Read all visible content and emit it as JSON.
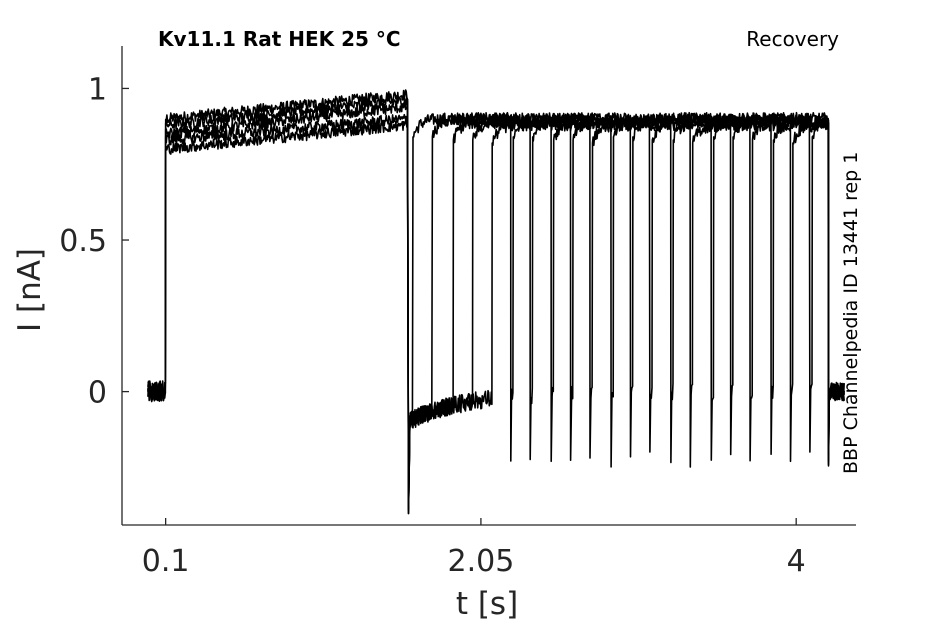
{
  "chart_data": {
    "type": "line",
    "title": "Kv11.1  Rat  HEK  25 °C",
    "protocol": "Recovery",
    "source_note": "BBP Channelpedia ID 13441 rep 1",
    "xlabel": "t [s]",
    "ylabel": "I [nA]",
    "xlim": [
      -0.17,
      4.37
    ],
    "ylim": [
      -0.44,
      1.14
    ],
    "xticks": [
      0.1,
      2.05,
      4
    ],
    "xtick_labels": [
      "0.1",
      "2.05",
      "4"
    ],
    "yticks": [
      0,
      0.5,
      1
    ],
    "ytick_labels": [
      "0",
      "0.5",
      "1"
    ],
    "grid": false,
    "line_color": "#000000",
    "activation_step": {
      "start": 0.1,
      "end": 1.6
    },
    "test_pulse_times": [
      1.63,
      1.75,
      1.88,
      2.0,
      2.12,
      2.25,
      2.37,
      2.5,
      2.62,
      2.74,
      2.87,
      2.99,
      3.11,
      3.24,
      3.36,
      3.49,
      3.61,
      3.73,
      3.86,
      3.98,
      4.1
    ],
    "trace_end": 4.2,
    "series": [
      {
        "start_level": 0.9,
        "end_level": 0.98
      },
      {
        "start_level": 0.88,
        "end_level": 0.96
      },
      {
        "start_level": 0.85,
        "end_level": 0.94
      },
      {
        "start_level": 0.83,
        "end_level": 0.9
      },
      {
        "start_level": 0.8,
        "end_level": 0.88
      }
    ],
    "baseline": 0,
    "tail_minimum": -0.39
  }
}
